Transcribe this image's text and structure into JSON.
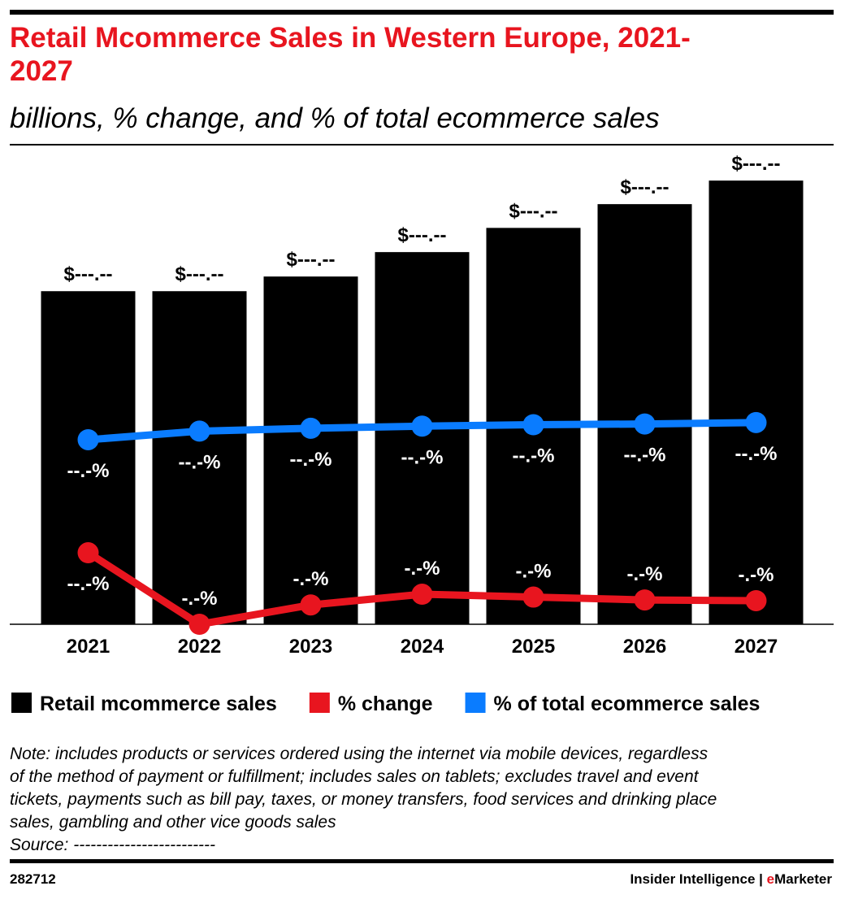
{
  "chart_data": {
    "type": "bar",
    "title": "Retail Mcommerce Sales in Western Europe, 2021-2027",
    "subtitle": "billions, % change, and % of total ecommerce sales",
    "categories": [
      "2021",
      "2022",
      "2023",
      "2024",
      "2025",
      "2026",
      "2027"
    ],
    "series": [
      {
        "name": "Retail mcommerce sales",
        "type": "bar",
        "color": "#000000",
        "values": [
          150.0,
          150.0,
          156.6,
          167.6,
          178.5,
          189.2,
          199.8
        ],
        "value_labels": [
          "$---.--",
          "$---.--",
          "$---.--",
          "$---.--",
          "$---.--",
          "$---.--",
          "$---.--"
        ]
      },
      {
        "name": "% change",
        "type": "line",
        "color": "#e8151f",
        "axis": "y2",
        "values": [
          10.0,
          0.0,
          2.7,
          4.2,
          3.8,
          3.4,
          3.3
        ],
        "value_labels": [
          "--.-%",
          "-.-%",
          "-.-%",
          "-.-%",
          "-.-%",
          "-.-%",
          "-.-%"
        ]
      },
      {
        "name": "% of total ecommerce sales",
        "type": "line",
        "color": "#0a7cff",
        "axis": "y2",
        "values": [
          25.8,
          27.0,
          27.4,
          27.7,
          27.9,
          28.0,
          28.2
        ],
        "value_labels": [
          "--.-%",
          "--.-%",
          "--.-%",
          "--.-%",
          "--.-%",
          "--.-%",
          "--.-%"
        ]
      }
    ],
    "ylim": [
      0,
      220
    ],
    "y2lim": [
      0,
      68.3
    ],
    "note": [
      "Note: includes products or services ordered using the internet via mobile devices, regardless",
      "of the method of payment or fulfillment; includes sales on tablets; excludes travel and event",
      "tickets, payments such as bill pay, taxes, or money transfers, food services and drinking place",
      "sales, gambling and other vice goods sales"
    ],
    "source": "Source: -------------------------",
    "footer": {
      "id": "282712",
      "brand": [
        "Insider Intelligence | ",
        "e",
        "Marketer"
      ]
    }
  }
}
